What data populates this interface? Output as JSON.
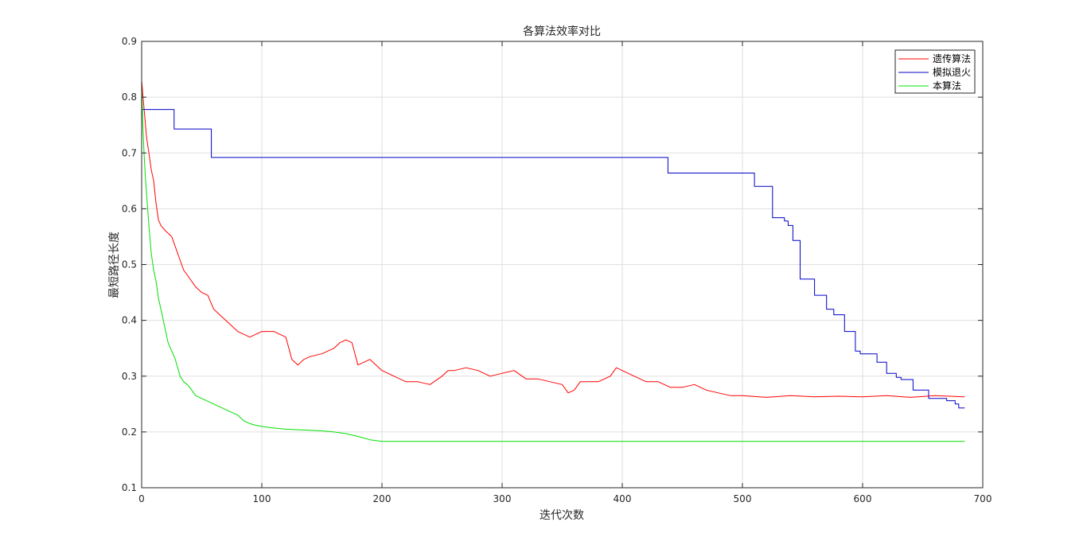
{
  "chart_data": {
    "type": "line",
    "title": "各算法效率对比",
    "xlabel": "迭代次数",
    "ylabel": "最短路径长度",
    "xlim": [
      0,
      700
    ],
    "ylim": [
      0.1,
      0.9
    ],
    "xticks": [
      0,
      100,
      200,
      300,
      400,
      500,
      600,
      700
    ],
    "yticks": [
      0.1,
      0.2,
      0.3,
      0.4,
      0.5,
      0.6,
      0.7,
      0.8,
      0.9
    ],
    "xtick_labels": [
      "0",
      "100",
      "200",
      "300",
      "400",
      "500",
      "600",
      "700"
    ],
    "ytick_labels": [
      "0.1",
      "0.2",
      "0.3",
      "0.4",
      "0.5",
      "0.6",
      "0.7",
      "0.8",
      "0.9"
    ],
    "grid": true,
    "legend_position": "top-right",
    "series": [
      {
        "name": "遗传算法",
        "color": "#ff0000",
        "x": [
          0,
          2,
          4,
          6,
          8,
          10,
          12,
          14,
          16,
          18,
          20,
          25,
          30,
          35,
          40,
          45,
          50,
          55,
          58,
          60,
          65,
          70,
          75,
          80,
          85,
          90,
          95,
          100,
          110,
          120,
          125,
          130,
          135,
          140,
          150,
          160,
          165,
          170,
          175,
          180,
          190,
          200,
          205,
          210,
          220,
          230,
          240,
          250,
          255,
          260,
          270,
          280,
          290,
          300,
          310,
          320,
          330,
          340,
          350,
          355,
          360,
          365,
          370,
          380,
          390,
          395,
          400,
          410,
          420,
          430,
          440,
          450,
          460,
          470,
          480,
          490,
          500,
          520,
          540,
          560,
          580,
          600,
          620,
          640,
          660,
          685
        ],
        "y": [
          0.83,
          0.78,
          0.73,
          0.7,
          0.67,
          0.65,
          0.61,
          0.58,
          0.57,
          0.565,
          0.56,
          0.55,
          0.52,
          0.49,
          0.475,
          0.46,
          0.45,
          0.445,
          0.43,
          0.42,
          0.41,
          0.4,
          0.39,
          0.38,
          0.375,
          0.37,
          0.375,
          0.38,
          0.38,
          0.37,
          0.33,
          0.32,
          0.33,
          0.335,
          0.34,
          0.35,
          0.36,
          0.365,
          0.36,
          0.32,
          0.33,
          0.31,
          0.305,
          0.3,
          0.29,
          0.29,
          0.285,
          0.3,
          0.31,
          0.31,
          0.315,
          0.31,
          0.3,
          0.305,
          0.31,
          0.295,
          0.295,
          0.29,
          0.285,
          0.27,
          0.275,
          0.29,
          0.29,
          0.29,
          0.3,
          0.315,
          0.31,
          0.3,
          0.29,
          0.29,
          0.28,
          0.28,
          0.285,
          0.275,
          0.27,
          0.265,
          0.265,
          0.262,
          0.265,
          0.263,
          0.264,
          0.263,
          0.265,
          0.262,
          0.265,
          0.263
        ]
      },
      {
        "name": "模拟退火",
        "color": "#0000c8",
        "x": [
          0,
          27,
          27,
          58,
          58,
          438,
          438,
          510,
          510,
          525,
          525,
          535,
          535,
          538,
          538,
          542,
          542,
          548,
          548,
          560,
          560,
          570,
          570,
          576,
          576,
          585,
          585,
          594,
          594,
          598,
          598,
          612,
          612,
          620,
          620,
          628,
          628,
          632,
          632,
          642,
          642,
          655,
          655,
          670,
          670,
          677,
          677,
          680,
          680,
          685
        ],
        "y": [
          0.778,
          0.778,
          0.743,
          0.743,
          0.692,
          0.692,
          0.664,
          0.664,
          0.64,
          0.64,
          0.584,
          0.584,
          0.578,
          0.578,
          0.57,
          0.57,
          0.543,
          0.543,
          0.474,
          0.474,
          0.445,
          0.445,
          0.42,
          0.42,
          0.41,
          0.41,
          0.38,
          0.38,
          0.345,
          0.345,
          0.34,
          0.34,
          0.325,
          0.325,
          0.305,
          0.305,
          0.298,
          0.298,
          0.294,
          0.294,
          0.275,
          0.275,
          0.26,
          0.26,
          0.256,
          0.256,
          0.25,
          0.25,
          0.243,
          0.243
        ]
      },
      {
        "name": "本算法",
        "color": "#00e000",
        "x": [
          0,
          1,
          2,
          3,
          4,
          6,
          8,
          10,
          12,
          14,
          16,
          18,
          20,
          22,
          25,
          28,
          30,
          32,
          35,
          38,
          40,
          45,
          50,
          55,
          60,
          65,
          70,
          75,
          80,
          85,
          90,
          95,
          100,
          110,
          120,
          130,
          140,
          150,
          160,
          170,
          180,
          190,
          200,
          220,
          300,
          400,
          500,
          600,
          685
        ],
        "y": [
          0.82,
          0.75,
          0.7,
          0.66,
          0.63,
          0.57,
          0.52,
          0.49,
          0.47,
          0.44,
          0.42,
          0.4,
          0.38,
          0.36,
          0.345,
          0.33,
          0.315,
          0.3,
          0.29,
          0.285,
          0.28,
          0.265,
          0.26,
          0.255,
          0.25,
          0.245,
          0.24,
          0.235,
          0.23,
          0.22,
          0.215,
          0.212,
          0.21,
          0.207,
          0.205,
          0.204,
          0.203,
          0.202,
          0.2,
          0.197,
          0.192,
          0.186,
          0.183,
          0.183,
          0.183,
          0.183,
          0.183,
          0.183,
          0.183
        ]
      }
    ]
  }
}
